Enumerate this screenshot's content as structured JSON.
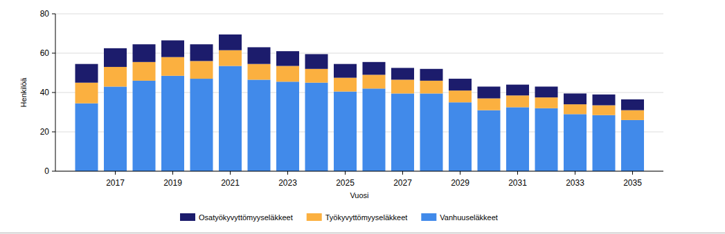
{
  "chart_data": {
    "type": "bar",
    "stacked": true,
    "grid": true,
    "legend": "bottom",
    "x_label": "Vuosi",
    "y_label": "Henkilöä",
    "categories": [
      null,
      "2017",
      null,
      "2019",
      null,
      "2021",
      null,
      "2023",
      null,
      "2025",
      null,
      "2027",
      null,
      "2029",
      null,
      "2031",
      null,
      "2033",
      null,
      "2035"
    ],
    "ylim": [
      0,
      80
    ],
    "yticks": [
      0,
      20,
      40,
      60,
      80
    ],
    "series": [
      {
        "name": "Osatyökyvyttömyyseläkkeet",
        "color": "#1c1c6c",
        "values": [
          9.5,
          9.5,
          9,
          8.5,
          8.5,
          8,
          8.5,
          7.5,
          7.5,
          7,
          6.5,
          6,
          6,
          6,
          6,
          5.5,
          5.5,
          5.5,
          5.5,
          5.5
        ]
      },
      {
        "name": "Työkyvyttömyyseläkkeet",
        "color": "#fbb040",
        "values": [
          10.5,
          10,
          9.5,
          9.5,
          9,
          8,
          8,
          8,
          7,
          7,
          7,
          7,
          6.5,
          6,
          6,
          6,
          5.5,
          5,
          5,
          5
        ]
      },
      {
        "name": "Vanhuuseläkkeet",
        "color": "#418aea",
        "values": [
          34.5,
          43,
          46,
          48.5,
          47,
          53.5,
          46.5,
          45.5,
          45,
          40.5,
          42,
          39.5,
          39.5,
          35,
          31,
          32.5,
          32,
          29,
          28.5,
          26
        ]
      }
    ]
  }
}
